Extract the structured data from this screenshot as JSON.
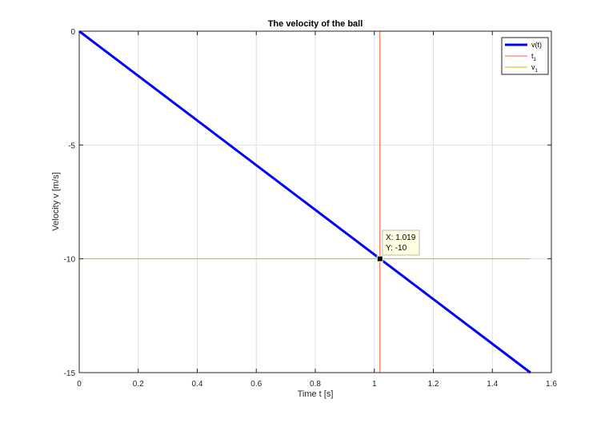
{
  "chart_data": {
    "type": "line",
    "title": "The velocity of the ball",
    "xlabel": "Time t [s]",
    "ylabel": "Velocity v [m/s]",
    "xlim": [
      0,
      1.6
    ],
    "ylim": [
      -15,
      0
    ],
    "xticks": [
      0,
      0.2,
      0.4,
      0.6,
      0.8,
      1,
      1.2,
      1.4,
      1.6
    ],
    "xtick_labels": [
      "0",
      "0.2",
      "0.4",
      "0.6",
      "0.8",
      "1",
      "1.2",
      "1.4",
      "1.6"
    ],
    "yticks": [
      0,
      -5,
      -10,
      -15
    ],
    "ytick_labels": [
      "0",
      "-5",
      "-10",
      "-15"
    ],
    "grid": true,
    "legend_position": "top-right",
    "series": [
      {
        "name": "v(t)",
        "legend_main": "v(t)",
        "legend_sub": "",
        "kind": "line",
        "color": "#0000ff",
        "x": [
          0,
          1.529
        ],
        "y": [
          0,
          -15
        ]
      },
      {
        "name": "t1",
        "legend_main": "t",
        "legend_sub": "1",
        "kind": "vline",
        "color": "#ff5b2d",
        "x": [
          1.019,
          1.019
        ],
        "y": [
          -15,
          0
        ]
      },
      {
        "name": "v1",
        "legend_main": "v",
        "legend_sub": "1",
        "kind": "hline",
        "color": "#e6b000",
        "x": [
          0,
          1.529
        ],
        "y": [
          -10,
          -10
        ]
      }
    ],
    "datatip": {
      "x": 1.019,
      "y": -10,
      "x_text": "X: 1.019",
      "y_text": "Y: -10"
    }
  }
}
